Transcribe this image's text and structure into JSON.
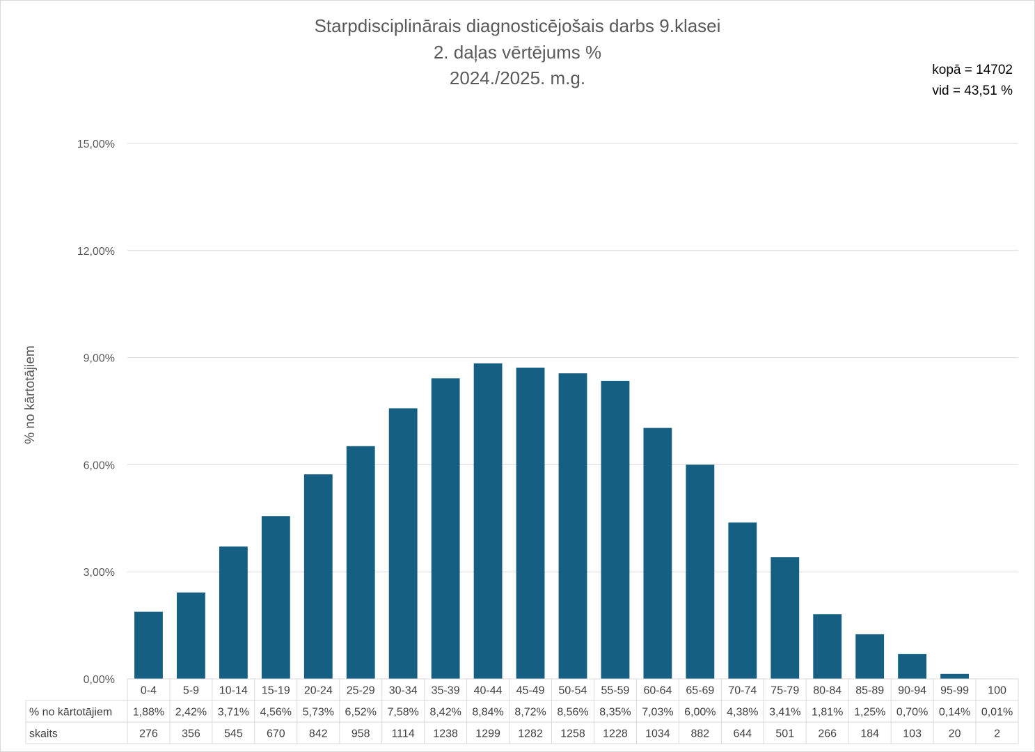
{
  "chart_data": {
    "type": "bar",
    "title": [
      "Starpdisciplinārais diagnosticējošais darbs 9.klasei",
      "2. daļas vērtējums %",
      "2024./2025. m.g."
    ],
    "info": [
      "kopā = 14702",
      "vid = 43,51 %"
    ],
    "ylabel": "% no kārtotājiem",
    "ylim": [
      0,
      15
    ],
    "yticks": [
      0,
      3,
      6,
      9,
      12,
      15
    ],
    "ytick_labels": [
      "0,00%",
      "3,00%",
      "6,00%",
      "9,00%",
      "12,00%",
      "15,00%"
    ],
    "grid": true,
    "bar_color": "#156082",
    "categories": [
      "0-4",
      "5-9",
      "10-14",
      "15-19",
      "20-24",
      "25-29",
      "30-34",
      "35-39",
      "40-44",
      "45-49",
      "50-54",
      "55-59",
      "60-64",
      "65-69",
      "70-74",
      "75-79",
      "80-84",
      "85-89",
      "90-94",
      "95-99",
      "100"
    ],
    "values": [
      1.88,
      2.42,
      3.71,
      4.56,
      5.73,
      6.52,
      7.58,
      8.42,
      8.84,
      8.72,
      8.56,
      8.35,
      7.03,
      6.0,
      4.38,
      3.41,
      1.81,
      1.25,
      0.7,
      0.14,
      0.01
    ],
    "table": {
      "row_labels": [
        "% no kārtotājiem",
        "skaits"
      ],
      "percent_labels": [
        "1,88%",
        "2,42%",
        "3,71%",
        "4,56%",
        "5,73%",
        "6,52%",
        "7,58%",
        "8,42%",
        "8,84%",
        "8,72%",
        "8,56%",
        "8,35%",
        "7,03%",
        "6,00%",
        "4,38%",
        "3,41%",
        "1,81%",
        "1,25%",
        "0,70%",
        "0,14%",
        "0,01%"
      ],
      "counts": [
        "276",
        "356",
        "545",
        "670",
        "842",
        "958",
        "1114",
        "1238",
        "1299",
        "1282",
        "1258",
        "1228",
        "1034",
        "882",
        "644",
        "501",
        "266",
        "184",
        "103",
        "20",
        "2"
      ]
    }
  }
}
